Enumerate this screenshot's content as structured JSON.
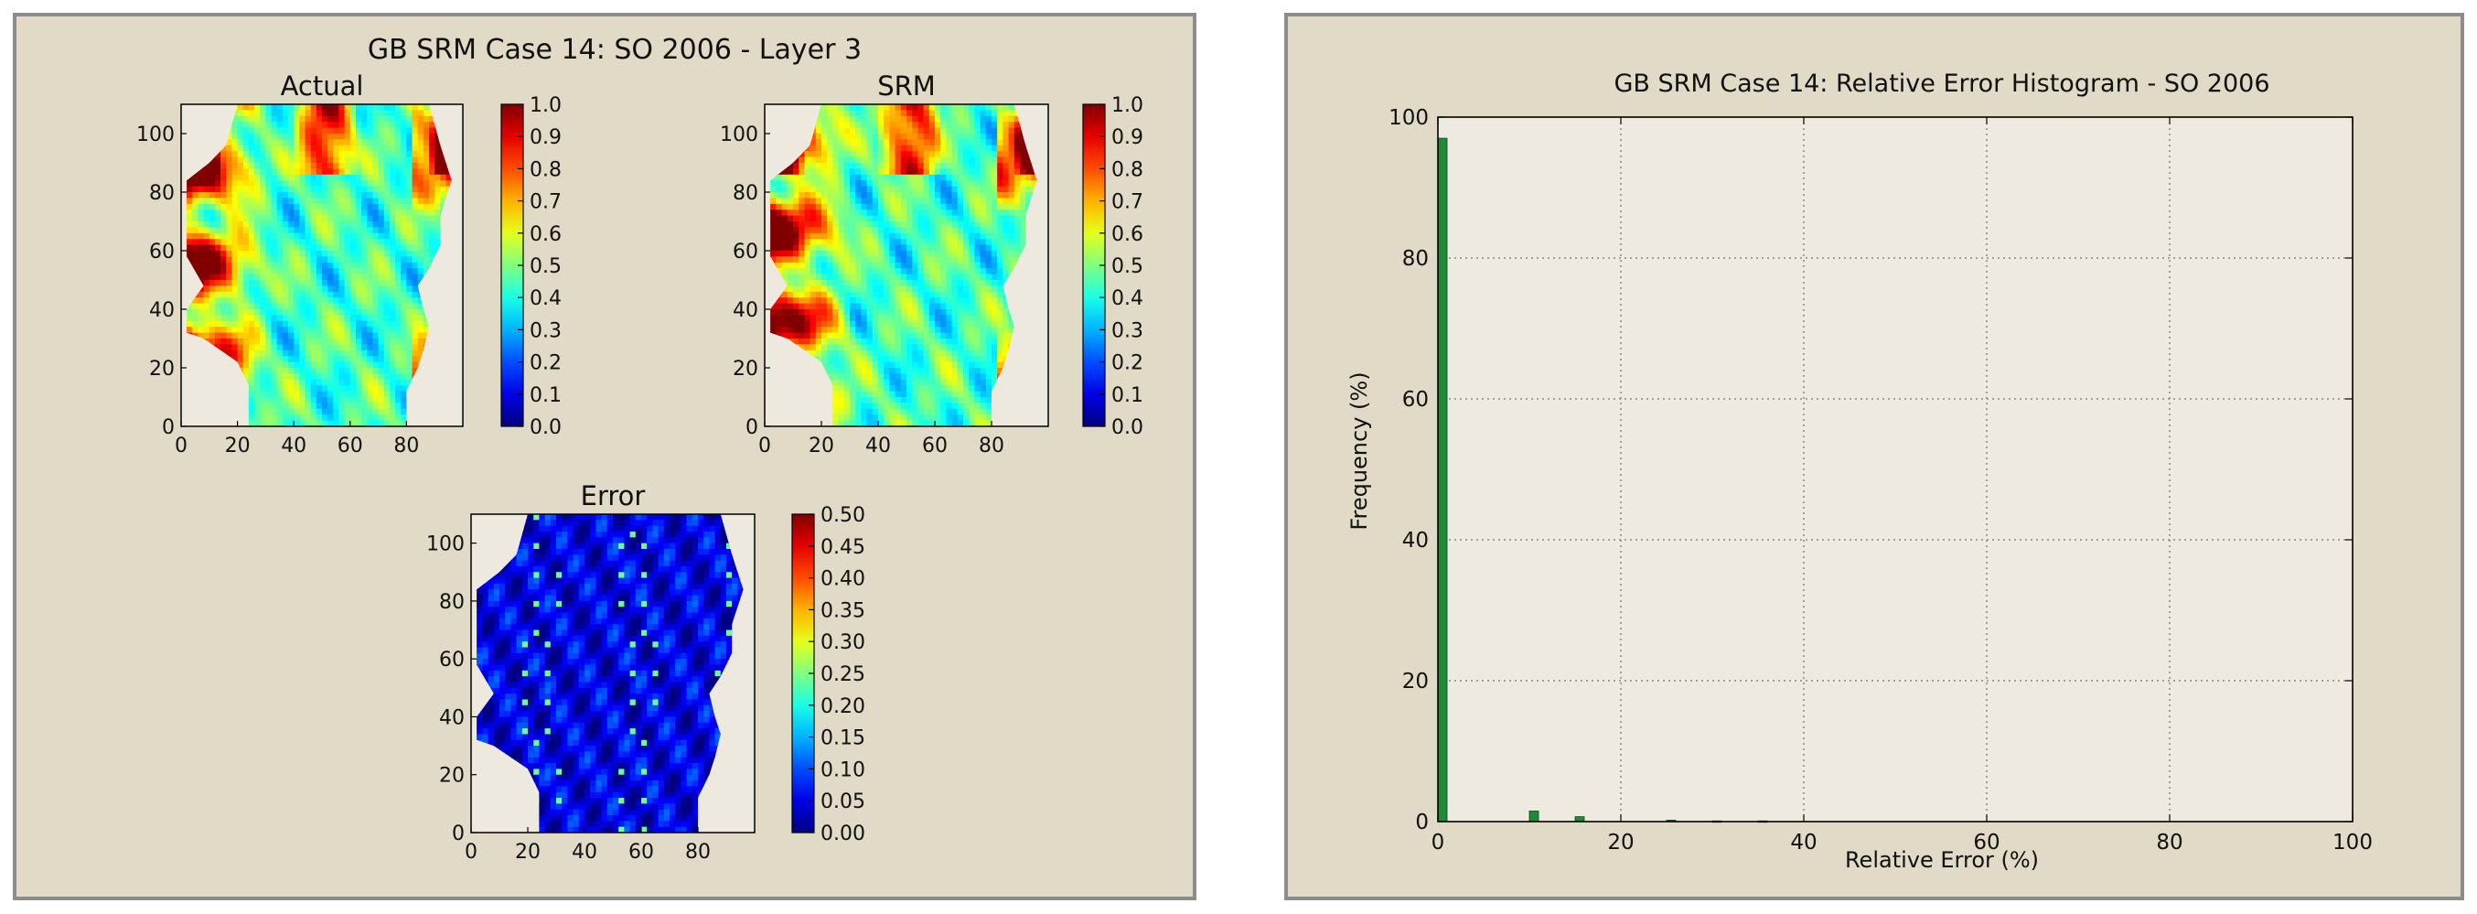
{
  "left_figure": {
    "suptitle": "GB SRM Case 14: SO 2006  - Layer 3",
    "colormap": "jet",
    "panels": [
      {
        "title": "Actual",
        "x_ticks": [
          "0",
          "20",
          "40",
          "60",
          "80"
        ],
        "y_ticks": [
          "0",
          "20",
          "40",
          "60",
          "80",
          "100"
        ],
        "colorbar_ticks": [
          "1.0",
          "0.9",
          "0.8",
          "0.7",
          "0.6",
          "0.5",
          "0.4",
          "0.3",
          "0.2",
          "0.1",
          "0.0"
        ]
      },
      {
        "title": "SRM",
        "x_ticks": [
          "0",
          "20",
          "40",
          "60",
          "80"
        ],
        "y_ticks": [
          "0",
          "20",
          "40",
          "60",
          "80",
          "100"
        ],
        "colorbar_ticks": [
          "1.0",
          "0.9",
          "0.8",
          "0.7",
          "0.6",
          "0.5",
          "0.4",
          "0.3",
          "0.2",
          "0.1",
          "0.0"
        ]
      },
      {
        "title": "Error",
        "x_ticks": [
          "0",
          "20",
          "40",
          "60",
          "80"
        ],
        "y_ticks": [
          "0",
          "20",
          "40",
          "60",
          "80",
          "100"
        ],
        "colorbar_ticks": [
          "0.50",
          "0.45",
          "0.40",
          "0.35",
          "0.30",
          "0.25",
          "0.20",
          "0.15",
          "0.10",
          "0.05",
          "0.00"
        ]
      }
    ]
  },
  "chart_data": [
    {
      "type": "heatmap",
      "title": "Actual",
      "xlim": [
        0,
        100
      ],
      "ylim": [
        0,
        110
      ],
      "colorbar_range": [
        0.0,
        1.0
      ],
      "colors": {
        "background": "#ede9de"
      }
    },
    {
      "type": "heatmap",
      "title": "SRM",
      "xlim": [
        0,
        100
      ],
      "ylim": [
        0,
        110
      ],
      "colorbar_range": [
        0.0,
        1.0
      ],
      "colors": {
        "background": "#ede9de"
      }
    },
    {
      "type": "heatmap",
      "title": "Error",
      "xlim": [
        0,
        100
      ],
      "ylim": [
        0,
        110
      ],
      "colorbar_range": [
        0.0,
        0.5
      ],
      "colors": {
        "background": "#ede9de"
      }
    },
    {
      "type": "bar",
      "title": "GB SRM Case 14: Relative Error Histogram - SO 2006",
      "xlabel": "Relative Error (%)",
      "ylabel": "Frequency (%)",
      "xlim": [
        0,
        100
      ],
      "ylim": [
        0,
        100
      ],
      "x_ticks": [
        "0",
        "20",
        "40",
        "60",
        "80",
        "100"
      ],
      "y_ticks": [
        "0",
        "20",
        "40",
        "60",
        "80",
        "100"
      ],
      "grid": true,
      "bin_width": 1,
      "bars": [
        {
          "x": 0,
          "value": 97
        },
        {
          "x": 10,
          "value": 1.5
        },
        {
          "x": 15,
          "value": 0.7
        },
        {
          "x": 25,
          "value": 0.2
        },
        {
          "x": 30,
          "value": 0.1
        },
        {
          "x": 35,
          "value": 0.1
        }
      ],
      "colors": {
        "bar": "#1d8a35",
        "background": "#eeeae0",
        "grid": "#555555"
      }
    }
  ]
}
